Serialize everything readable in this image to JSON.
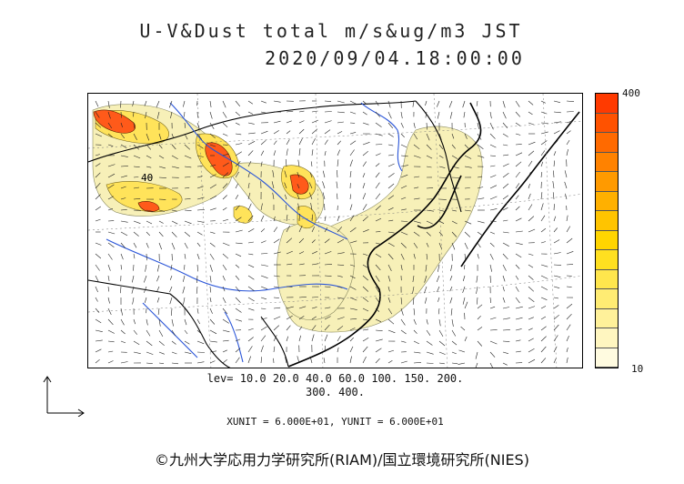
{
  "title_line1": "U-V&Dust total m/s&ug/m3 JST",
  "title_line2": "2020/09/04.18:00:00",
  "colorbar": {
    "max_label": "400",
    "min_label": "10",
    "colors": [
      "#fffbe0",
      "#fff6c0",
      "#fff19a",
      "#ffec73",
      "#ffe64d",
      "#ffe020",
      "#ffd500",
      "#ffc400",
      "#ffb000",
      "#ff9a00",
      "#ff8200",
      "#ff6a00",
      "#ff5200",
      "#ff3a00"
    ]
  },
  "levels_line1": "lev= 10.0 20.0 40.0 60.0 100. 150. 200.",
  "levels_line2": "300. 400.",
  "unit_line": "XUNIT = 6.000E+01, YUNIT = 6.000E+01",
  "credit": "©九州大学応用力学研究所(RIAM)/国立環境研究所(NIES)",
  "map_labels": {
    "contour_40": "40"
  },
  "colors": {
    "coast": "#000000",
    "river": "#2a55d8",
    "light_dust": "#f7f0b8",
    "dust_high": "#ff5a1a"
  }
}
